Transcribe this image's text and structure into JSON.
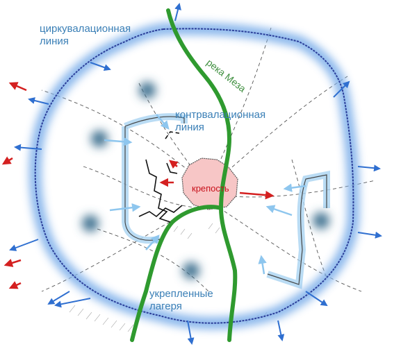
{
  "labels": {
    "circumvallation": "циркувалационная\nлиния",
    "contravallation": "контрвалационная\nлиния",
    "river": "река Меза",
    "fortress": "крепость",
    "camps": "укрепленные\nлагеря"
  },
  "colors": {
    "glow": "#7fb0ea",
    "ring_line": "#2c3f9a",
    "river": "#2f9a2f",
    "fortress_fill": "#f7c6c6",
    "label_blue": "#3a7fb6",
    "arrow_blue": "#2f6fd0",
    "arrow_light": "#8ec6ee",
    "arrow_red": "#d42020",
    "camp": "#3d6f8f"
  }
}
